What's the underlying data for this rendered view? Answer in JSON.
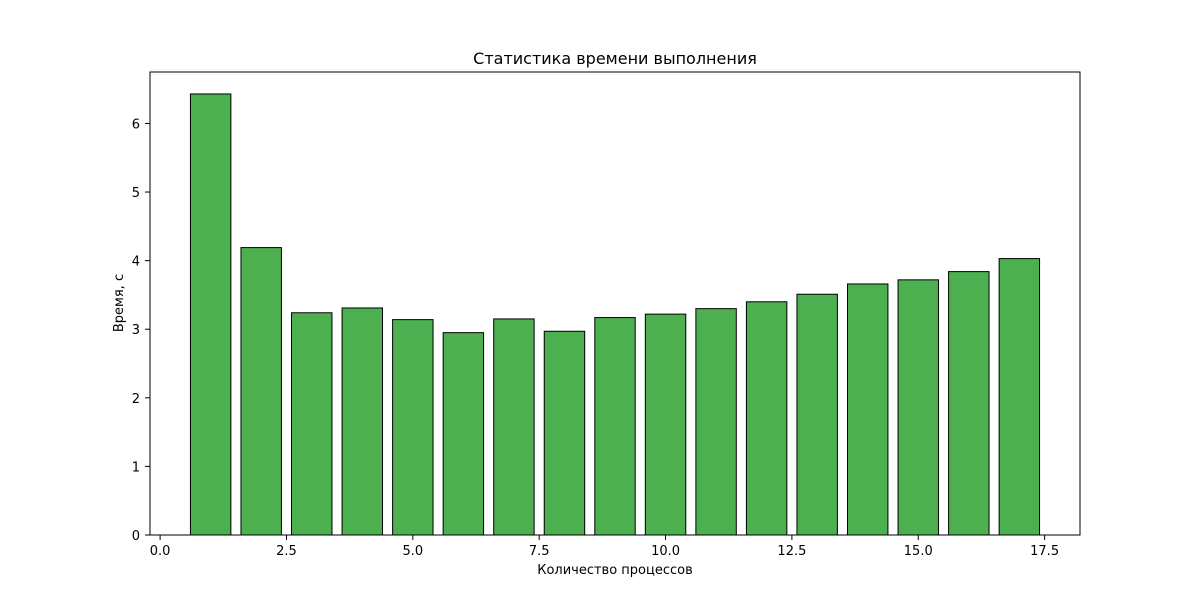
{
  "chart_data": {
    "type": "bar",
    "title": "Статистика времени выполнения",
    "xlabel": "Количество процессов",
    "ylabel": "Время, с",
    "x": [
      1,
      2,
      3,
      4,
      5,
      6,
      7,
      8,
      9,
      10,
      11,
      12,
      13,
      14,
      15,
      16,
      17
    ],
    "values": [
      6.43,
      4.19,
      3.24,
      3.31,
      3.14,
      2.95,
      3.15,
      2.97,
      3.17,
      3.22,
      3.3,
      3.4,
      3.51,
      3.66,
      3.72,
      3.84,
      4.03
    ],
    "bar_width": 0.8,
    "xlim": [
      -0.2,
      18.2
    ],
    "ylim": [
      0,
      6.75
    ],
    "xticks": [
      0.0,
      2.5,
      5.0,
      7.5,
      10.0,
      12.5,
      15.0,
      17.5
    ],
    "xtick_labels": [
      "0.0",
      "2.5",
      "5.0",
      "7.5",
      "10.0",
      "12.5",
      "15.0",
      "17.5"
    ],
    "yticks": [
      0,
      1,
      2,
      3,
      4,
      5,
      6
    ],
    "ytick_labels": [
      "0",
      "1",
      "2",
      "3",
      "4",
      "5",
      "6"
    ],
    "grid": false,
    "legend": "none",
    "colors": {
      "bar_fill": "#4caf50",
      "bar_edge": "#000000",
      "axes": "#000000",
      "background": "#ffffff"
    }
  }
}
